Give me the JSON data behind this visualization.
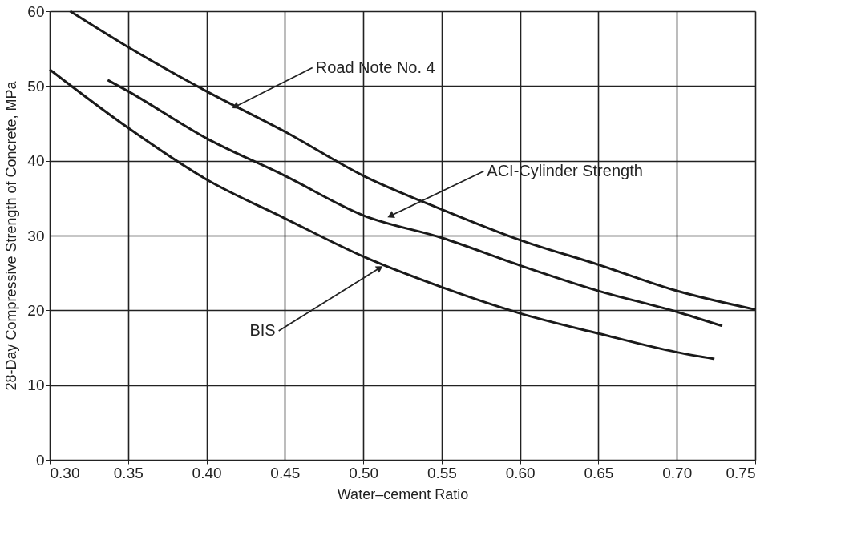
{
  "chart_data": {
    "type": "line",
    "xlabel": "Water–cement Ratio",
    "ylabel": "28-Day Compressive Strength of Concrete, MPa",
    "xlim": [
      0.3,
      0.75
    ],
    "ylim": [
      0,
      60
    ],
    "xticks": [
      {
        "value": 0.3,
        "label": "0.30"
      },
      {
        "value": 0.35,
        "label": "0.35"
      },
      {
        "value": 0.4,
        "label": "0.40"
      },
      {
        "value": 0.45,
        "label": "0.45"
      },
      {
        "value": 0.5,
        "label": "0.50"
      },
      {
        "value": 0.55,
        "label": "0.55"
      },
      {
        "value": 0.6,
        "label": "0.60"
      },
      {
        "value": 0.65,
        "label": "0.65"
      },
      {
        "value": 0.7,
        "label": "0.70"
      },
      {
        "value": 0.75,
        "label": "0.75"
      }
    ],
    "yticks": [
      0,
      10,
      20,
      30,
      40,
      50,
      60
    ],
    "grid": true,
    "marker": "none",
    "line_style": "solid",
    "series": [
      {
        "color": "#1a1a1a",
        "x": [
          0.313,
          0.35,
          0.4,
          0.45,
          0.5,
          0.55,
          0.6,
          0.65,
          0.7,
          0.75
        ],
        "values": [
          60,
          55.2,
          49.3,
          43.9,
          38.0,
          33.5,
          29.4,
          26.1,
          22.6,
          20.1
        ]
      },
      {
        "color": "#1a1a1a",
        "x": [
          0.337,
          0.35,
          0.4,
          0.45,
          0.5,
          0.55,
          0.6,
          0.65,
          0.7,
          0.729
        ],
        "values": [
          50.8,
          49.3,
          43.0,
          38.0,
          32.7,
          29.7,
          26.0,
          22.6,
          19.8,
          17.9
        ]
      },
      {
        "color": "#1a1a1a",
        "x": [
          0.3,
          0.35,
          0.4,
          0.45,
          0.5,
          0.55,
          0.6,
          0.65,
          0.7,
          0.724
        ],
        "values": [
          52.2,
          44.4,
          37.5,
          32.3,
          27.2,
          23.1,
          19.6,
          16.9,
          14.4,
          13.5
        ]
      }
    ],
    "annotations": [
      {
        "text": "Road Note No. 4",
        "x": 0.419,
        "y": 47.3
      },
      {
        "text": "ACI-Cylinder Strength",
        "x": 0.518,
        "y": 32.7
      },
      {
        "text": "BIS",
        "x": 0.51,
        "y": 25.6
      }
    ]
  }
}
